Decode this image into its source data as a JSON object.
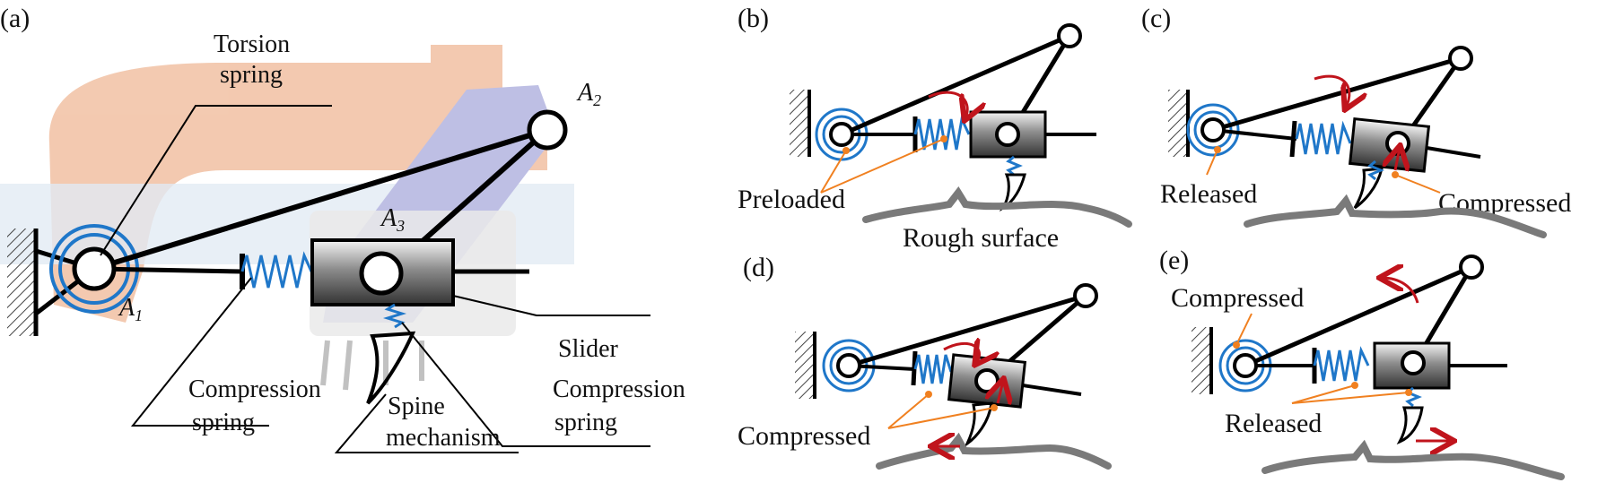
{
  "panels": {
    "a": {
      "label": "(a)",
      "torsion_spring": [
        "Torsion",
        "spring"
      ],
      "compression_spring_left": [
        "Compression",
        "spring"
      ],
      "compression_spring_right": [
        "Compression",
        "spring"
      ],
      "slider": "Slider",
      "spine_mechanism": [
        "Spine",
        "mechanism"
      ],
      "joint_labels": {
        "a1": {
          "base": "A",
          "sub": "1"
        },
        "a2": {
          "base": "A",
          "sub": "2"
        },
        "a3": {
          "base": "A",
          "sub": "3"
        }
      }
    },
    "b": {
      "label": "(b)",
      "state": "Preloaded",
      "surface": "Rough surface"
    },
    "c": {
      "label": "(c)",
      "state_left": "Released",
      "state_right": "Compressed"
    },
    "d": {
      "label": "(d)",
      "state": "Compressed"
    },
    "e": {
      "label": "(e)",
      "state_top": "Compressed",
      "state_bottom": "Released"
    }
  },
  "colors": {
    "link": "#000000",
    "spring": "#1f77c9",
    "motion_arrow": "#c0141c",
    "annotation": "#f08020",
    "surface": "#7a7a7a",
    "background_robot_orange": "#f2c4a8",
    "background_robot_blue": "#b7b9e2"
  }
}
